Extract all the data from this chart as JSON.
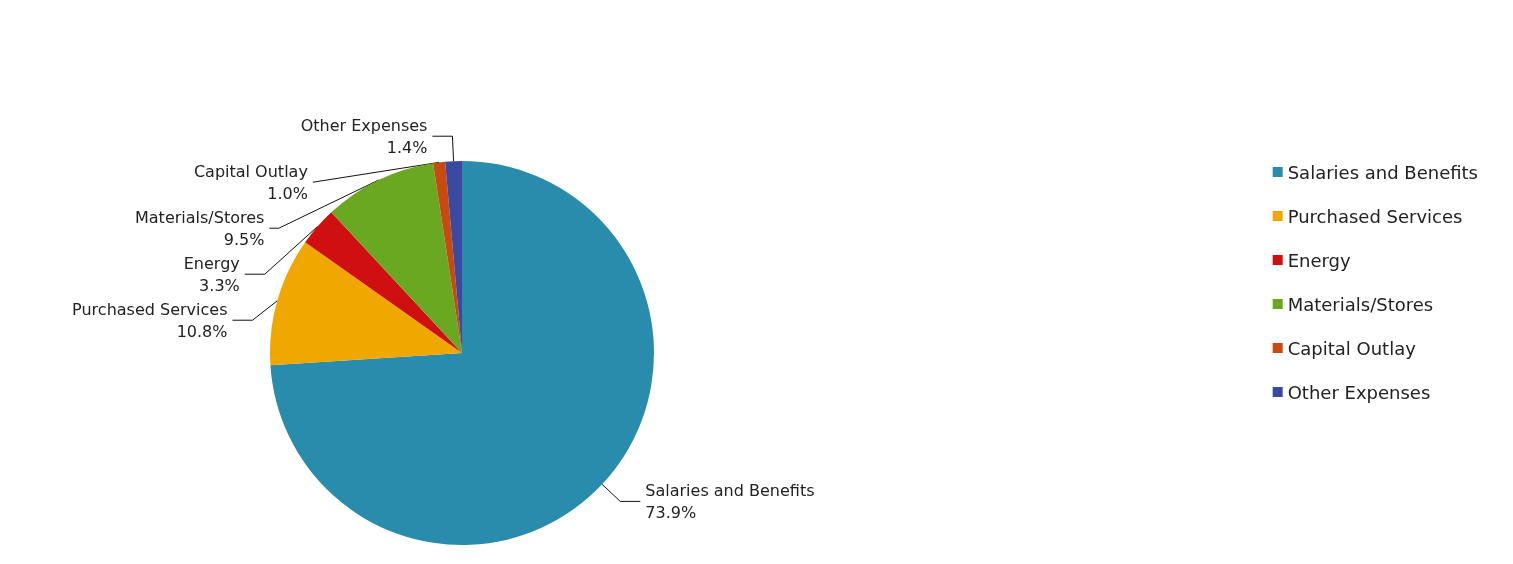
{
  "chart_data": {
    "type": "pie",
    "categories": [
      "Salaries and Benefits",
      "Purchased Services",
      "Energy",
      "Materials/Stores",
      "Capital Outlay",
      "Other Expenses"
    ],
    "values": [
      73.9,
      10.8,
      3.3,
      9.5,
      1.0,
      1.4
    ],
    "value_labels": [
      "73.9%",
      "10.8%",
      "3.3%",
      "9.5%",
      "1.0%",
      "1.4%"
    ],
    "colors": [
      "#2a8cad",
      "#f0a800",
      "#d01010",
      "#6aa821",
      "#c84a10",
      "#3a4aa0"
    ],
    "legend": "right"
  }
}
